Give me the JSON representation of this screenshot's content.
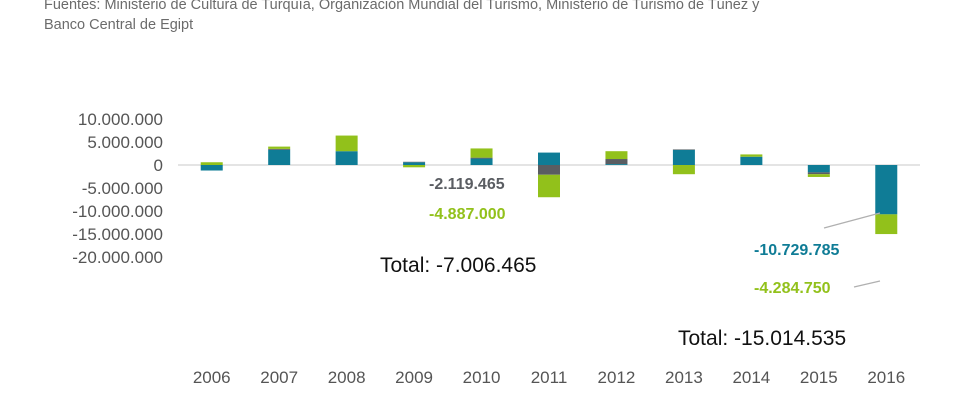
{
  "source_text": "Fuentes: Ministerio de Cultura de Turquía, Organización Mundial del Turismo, Ministerio de Turismo de Túnez y Banco Central de Egipt",
  "colors": {
    "teal": "#0F7C96",
    "gray": "#5A5D62",
    "green": "#92C11B",
    "axis": "#c8c8c8"
  },
  "chart_data": {
    "type": "bar",
    "stacked": true,
    "categories": [
      "2006",
      "2007",
      "2008",
      "2009",
      "2010",
      "2011",
      "2012",
      "2013",
      "2014",
      "2015",
      "2016"
    ],
    "ylim": [
      -20000000,
      10000000
    ],
    "yticks": [
      10000000,
      5000000,
      0,
      -5000000,
      -10000000,
      -15000000,
      -20000000
    ],
    "ytick_labels": [
      "10.000.000",
      "5.000.000",
      "0",
      "-5.000.000",
      "-10.000.000",
      "-15.000.000",
      "-20.000.000"
    ],
    "series": [
      {
        "color_key": "teal",
        "values": [
          -1200000,
          3300000,
          3000000,
          600000,
          1400000,
          2700000,
          200000,
          3300000,
          1800000,
          -1600000,
          -10729785
        ]
      },
      {
        "color_key": "gray",
        "values": [
          0,
          200000,
          0,
          100000,
          200000,
          -2119465,
          1100000,
          100000,
          0,
          -400000,
          0
        ]
      },
      {
        "color_key": "green",
        "values": [
          600000,
          500000,
          3400000,
          -500000,
          2000000,
          -4887000,
          1700000,
          -2000000,
          500000,
          -600000,
          -4284750
        ]
      }
    ],
    "annotations": [
      {
        "text": "-2.119.465",
        "color_key": "gray"
      },
      {
        "text": "-4.887.000",
        "color_key": "green"
      },
      {
        "text": "Total: -7.006.465",
        "color_key": "black"
      },
      {
        "text": "-10.729.785",
        "color_key": "teal"
      },
      {
        "text": "-4.284.750",
        "color_key": "green"
      },
      {
        "text": "Total: -15.014.535",
        "color_key": "black"
      }
    ]
  }
}
